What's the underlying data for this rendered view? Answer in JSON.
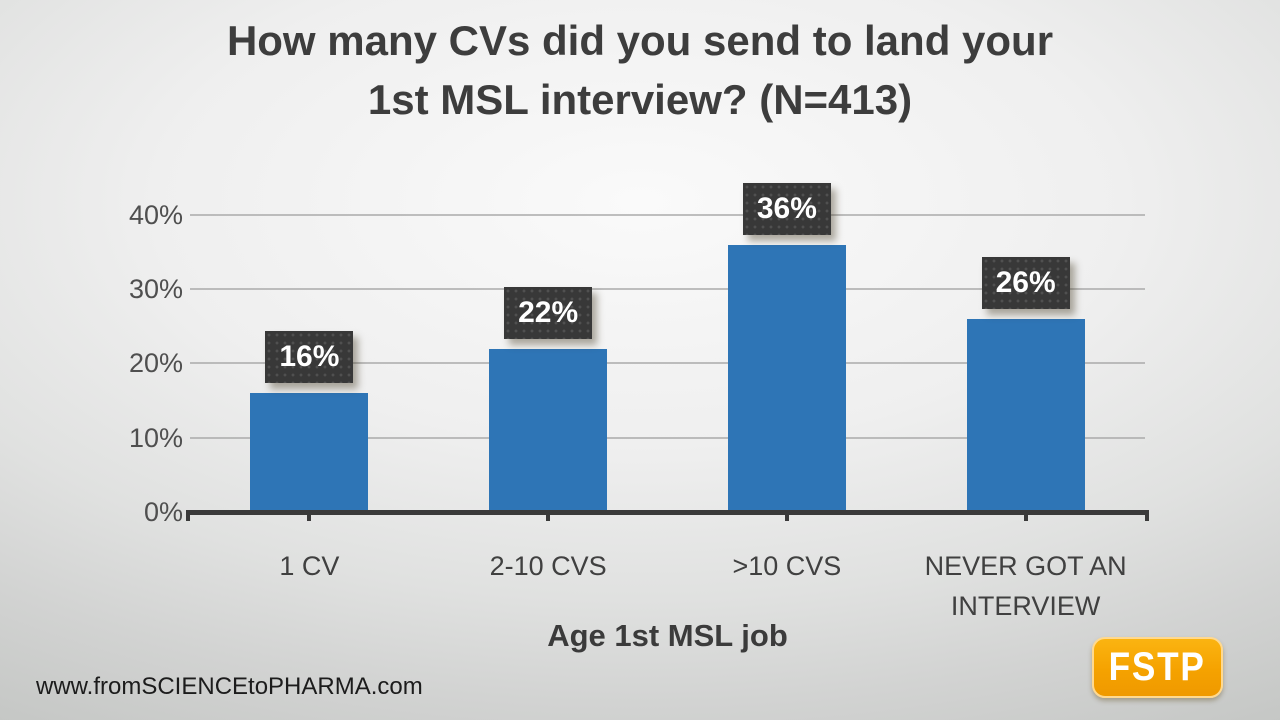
{
  "slide": {
    "title_lines": [
      "How many CVs did you send to land your",
      "1st MSL interview? (N=413)"
    ],
    "footer": "www.fromSCIENCEtoPHARMA.com",
    "logo_text": "FSTP",
    "logo_color": "#F5A200"
  },
  "chart_data": {
    "type": "bar",
    "title": "How many CVs did you send to land your 1st MSL interview? (N=413)",
    "categories": [
      "1 CV",
      "2-10 CVS",
      ">10 CVS",
      "NEVER GOT AN INTERVIEW"
    ],
    "values": [
      16,
      22,
      36,
      26
    ],
    "data_labels": [
      "16%",
      "22%",
      "36%",
      "26%"
    ],
    "xlabel": "Age 1st MSL job",
    "ylabel": "",
    "ylim": [
      0,
      45
    ],
    "yticks": [
      0,
      10,
      20,
      30,
      40
    ],
    "ytick_labels": [
      "0%",
      "10%",
      "20%",
      "30%",
      "40%"
    ],
    "grid": true,
    "legend": false,
    "bar_color": "#2E75B6",
    "label_box_color": "#383838",
    "label_text_color": "#FFFFFF",
    "axis_color": "#3A3A3A"
  }
}
